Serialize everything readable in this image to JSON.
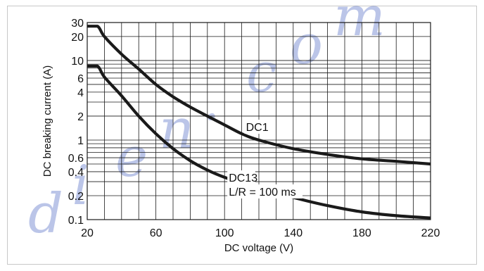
{
  "chart_data": {
    "type": "line",
    "xlabel": "DC voltage (V)",
    "ylabel": "DC breaking current (A)",
    "xlim": [
      20,
      220
    ],
    "ylim": [
      0.1,
      30
    ],
    "y_scale": "log",
    "grid": true,
    "x_ticks": [
      {
        "value": 20,
        "label": "20"
      },
      {
        "value": 60,
        "label": "60"
      },
      {
        "value": 100,
        "label": "100"
      },
      {
        "value": 140,
        "label": "140"
      },
      {
        "value": 180,
        "label": "180"
      },
      {
        "value": 220,
        "label": "220"
      }
    ],
    "y_ticks": [
      {
        "value": 0.1,
        "label": "0.1"
      },
      {
        "value": 0.2,
        "label": "0.2"
      },
      {
        "value": 0.4,
        "label": "0.4"
      },
      {
        "value": 0.6,
        "label": "0.6"
      },
      {
        "value": 1,
        "label": "1"
      },
      {
        "value": 2,
        "label": "2"
      },
      {
        "value": 4,
        "label": "4"
      },
      {
        "value": 6,
        "label": "6"
      },
      {
        "value": 10,
        "label": "10"
      },
      {
        "value": 20,
        "label": "20"
      },
      {
        "value": 30,
        "label": "30"
      }
    ],
    "series": [
      {
        "name": "DC1",
        "x": [
          20,
          26,
          30,
          40,
          50,
          60,
          70,
          80,
          90,
          100,
          110,
          120,
          140,
          160,
          180,
          200,
          220
        ],
        "y": [
          27,
          27,
          20,
          12,
          7.8,
          5.0,
          3.5,
          2.6,
          2.0,
          1.55,
          1.2,
          1.0,
          0.78,
          0.66,
          0.58,
          0.54,
          0.5
        ]
      },
      {
        "name": "DC13",
        "x": [
          20,
          26,
          30,
          40,
          50,
          60,
          70,
          80,
          90,
          100,
          110,
          120,
          140,
          160,
          180,
          200,
          220
        ],
        "y": [
          8.5,
          8.5,
          6.2,
          3.6,
          2.0,
          1.2,
          0.78,
          0.55,
          0.42,
          0.34,
          0.29,
          0.25,
          0.19,
          0.15,
          0.125,
          0.112,
          0.105
        ]
      }
    ],
    "annotations": [
      {
        "text": "DC1",
        "x": 110,
        "y": 1.3
      },
      {
        "text": "DC13",
        "x": 100,
        "y": 0.3
      },
      {
        "text": "L/R = 100 ms",
        "x": 100,
        "y": 0.2
      }
    ]
  },
  "watermark": {
    "text": "dien.com",
    "color": "#1f3fb4"
  },
  "colors": {
    "curve": "#1a1a1a",
    "grid": "#1a1a1a"
  }
}
